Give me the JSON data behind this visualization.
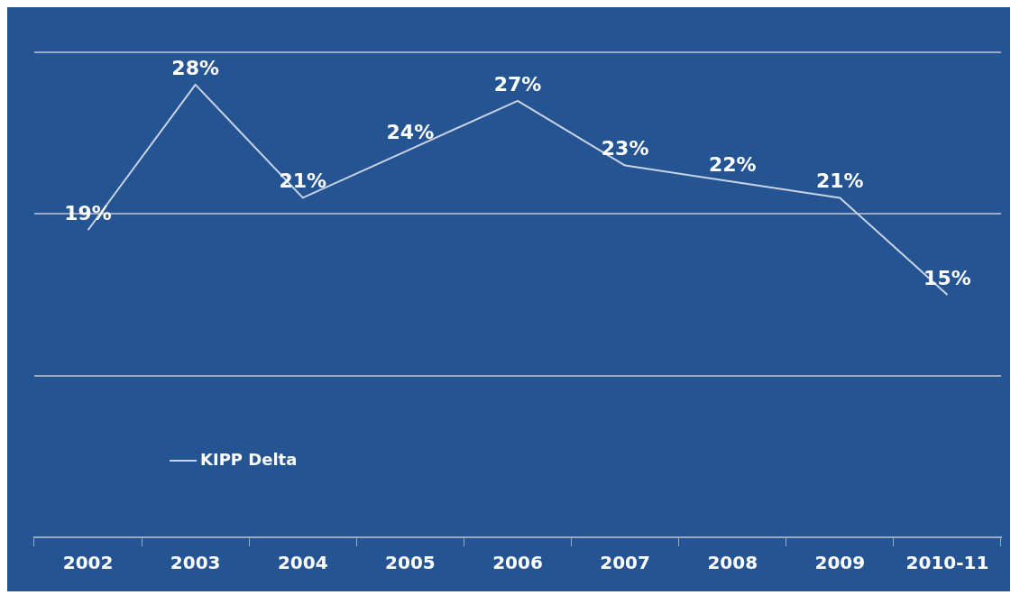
{
  "chart_data": {
    "type": "line",
    "categories": [
      "2002",
      "2003",
      "2004",
      "2005",
      "2006",
      "2007",
      "2008",
      "2009",
      "2010-11"
    ],
    "series": [
      {
        "name": "KIPP Delta",
        "color": "#c9d3e6",
        "values": [
          19,
          28,
          21,
          24,
          27,
          23,
          22,
          21,
          15
        ],
        "value_labels": [
          "19%",
          "28%",
          "21%",
          "24%",
          "27%",
          "23%",
          "22%",
          "21%",
          "15%"
        ]
      }
    ],
    "ylim": [
      0,
      30
    ],
    "yticks": [
      {
        "value": 0,
        "label": null
      },
      {
        "value": 10,
        "label": null
      },
      {
        "value": 20,
        "label": null
      },
      {
        "value": 30,
        "label": null
      }
    ],
    "tick_labels": "x",
    "grid": "y",
    "legend": "bottom left",
    "marker": "none",
    "line_style": "solid"
  }
}
